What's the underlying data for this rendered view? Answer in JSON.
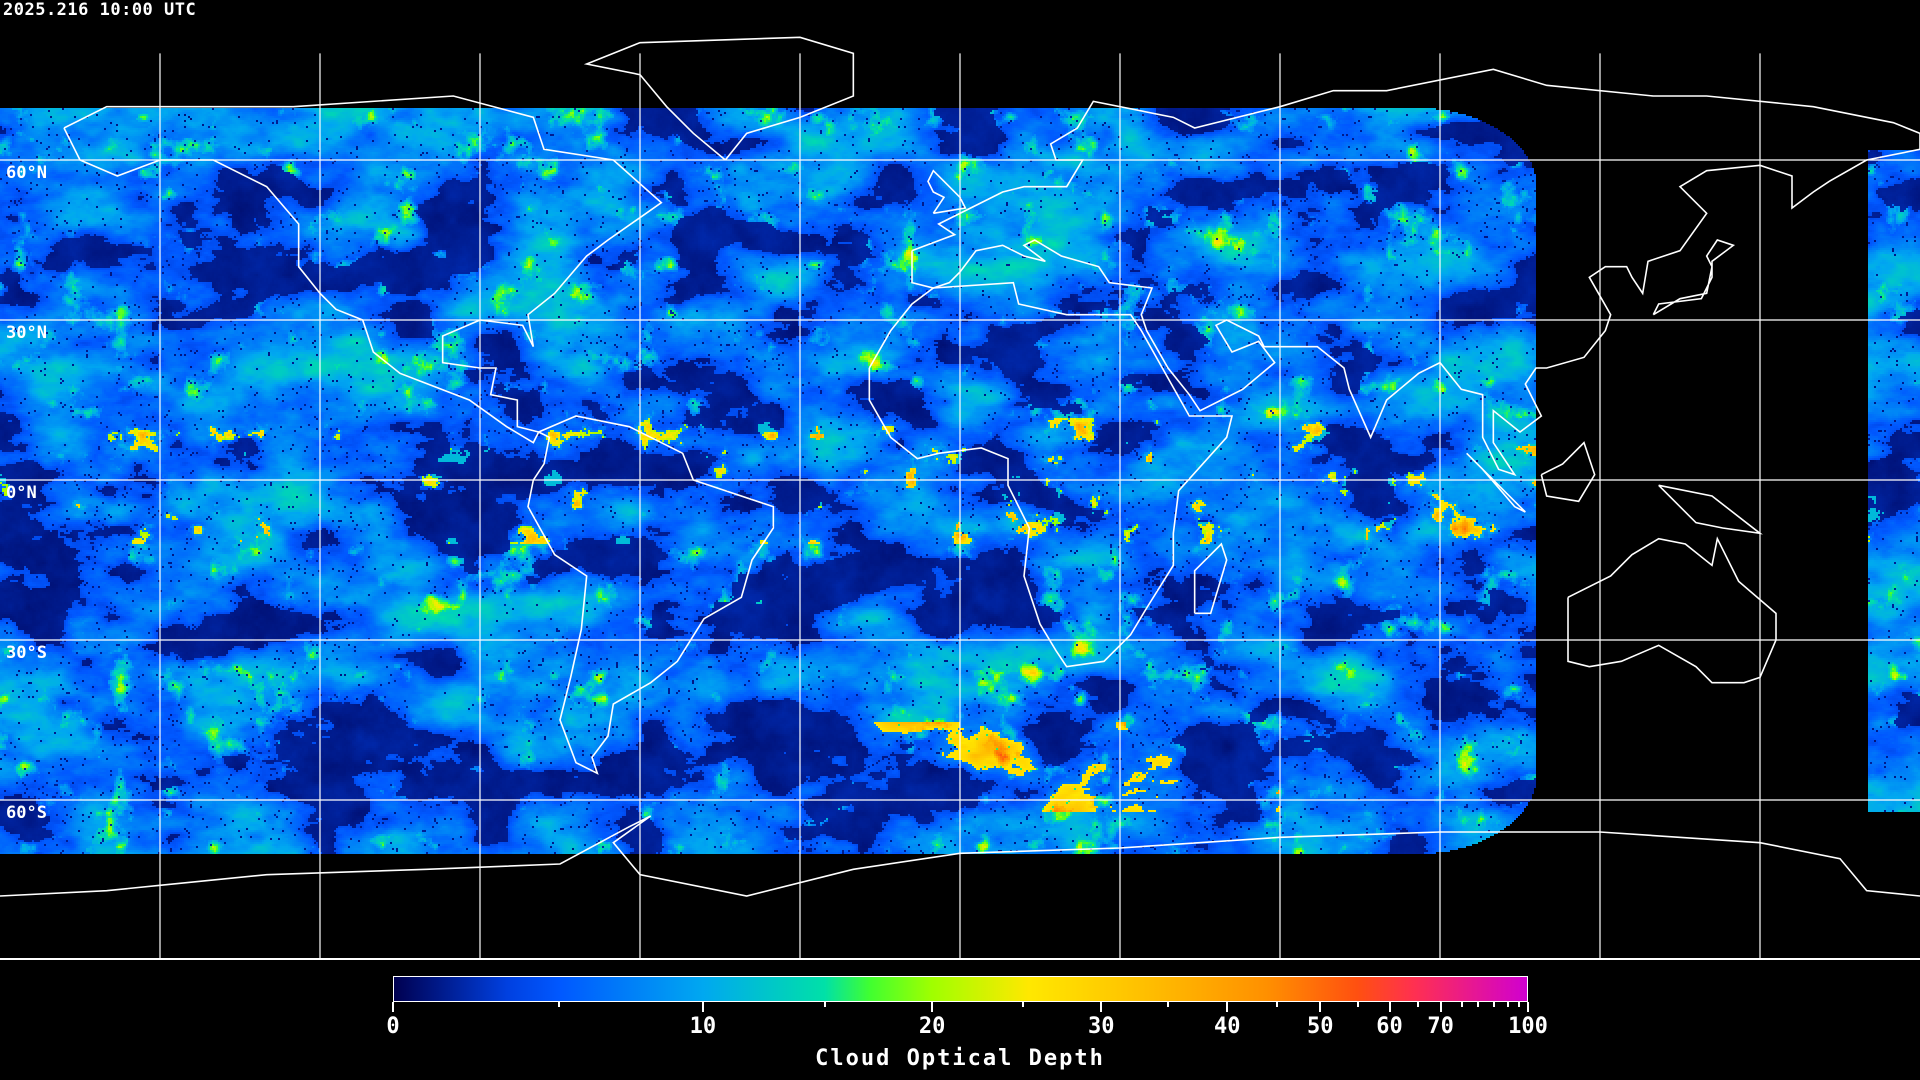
{
  "header": {
    "timestamp": "2025.216 10:00 UTC"
  },
  "map": {
    "projection": "equirectangular",
    "center_longitude": 0,
    "gridline_spacing_deg": 30,
    "gridline_color": "#ffffff",
    "coastline_color": "#ffffff",
    "background_color": "#000000",
    "lat_labels": [
      "60°N",
      "30°N",
      "0°N",
      "30°S",
      "60°S"
    ]
  },
  "colorbar": {
    "title": "Cloud Optical Depth",
    "range": [
      0,
      100
    ],
    "tick_labels": [
      "0",
      "10",
      "20",
      "30",
      "40",
      "50",
      "60",
      "70",
      "100"
    ],
    "colors": [
      "#000050",
      "#0040e0",
      "#0058ff",
      "#00a8f0",
      "#00e0a8",
      "#40ff30",
      "#a0ff00",
      "#ffe800",
      "#ffc000",
      "#ff9000",
      "#ff5010",
      "#ff3050",
      "#d000d0"
    ]
  }
}
